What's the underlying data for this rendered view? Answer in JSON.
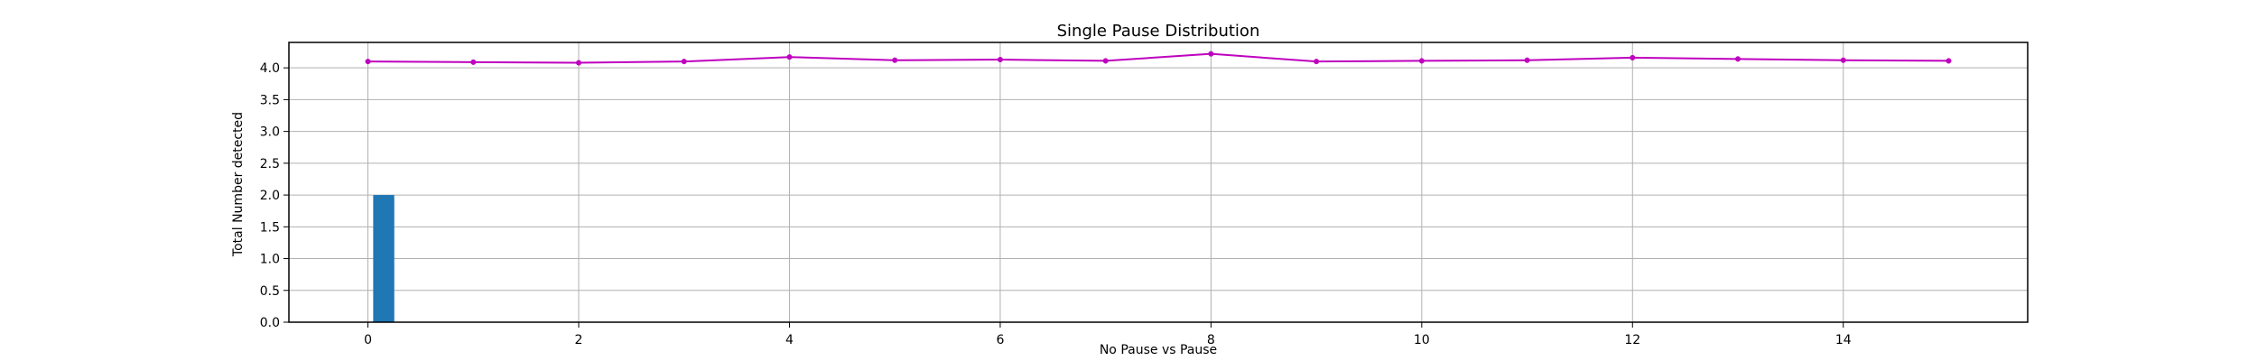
{
  "chart_data": {
    "type": "bar",
    "title": "Single Pause Distribution",
    "xlabel": "No Pause vs Pause",
    "ylabel": "Total Number detected",
    "xlim": [
      -0.75,
      15.75
    ],
    "ylim": [
      0,
      4.4
    ],
    "xticks": [
      0,
      2,
      4,
      6,
      8,
      10,
      12,
      14
    ],
    "yticks": [
      0.0,
      0.5,
      1.0,
      1.5,
      2.0,
      2.5,
      3.0,
      3.5,
      4.0
    ],
    "grid": true,
    "bars": [
      {
        "x": 0.15,
        "value": 2.0,
        "color": "#1f77b4"
      }
    ],
    "line_series": {
      "color": "#bf00bf",
      "x": [
        0,
        1,
        2,
        3,
        4,
        5,
        6,
        7,
        8,
        9,
        10,
        11,
        12,
        13,
        14,
        15
      ],
      "values": [
        4.1,
        4.09,
        4.08,
        4.1,
        4.17,
        4.12,
        4.13,
        4.11,
        4.22,
        4.1,
        4.11,
        4.12,
        4.16,
        4.14,
        4.12,
        4.11
      ]
    }
  }
}
